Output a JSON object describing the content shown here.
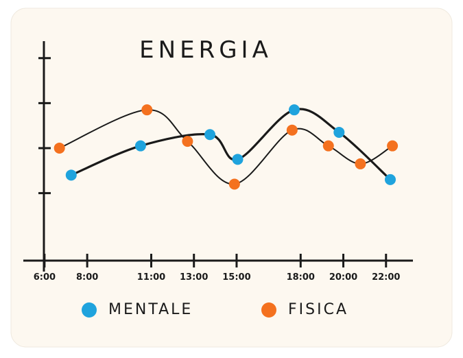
{
  "chart_data": {
    "type": "line",
    "title": "ENERGIA",
    "xlim": [
      5.2,
      24
    ],
    "ylim": [
      0,
      4.8
    ],
    "xticks": [
      {
        "value": 6,
        "label": "6:00"
      },
      {
        "value": 8,
        "label": "8:00"
      },
      {
        "value": 11,
        "label": "11:00"
      },
      {
        "value": 13,
        "label": "13:00"
      },
      {
        "value": 15,
        "label": "15:00"
      },
      {
        "value": 18,
        "label": "18:00"
      },
      {
        "value": 20,
        "label": "20:00"
      },
      {
        "value": 22,
        "label": "22:00"
      }
    ],
    "yticks": [
      1.5,
      2.5,
      3.5,
      4.5
    ],
    "series": [
      {
        "name": "MENTALE",
        "color": "#1fa3dd",
        "x": [
          7.25,
          10.5,
          13.75,
          15.05,
          17.7,
          19.8,
          22.2
        ],
        "values": [
          1.9,
          2.55,
          2.8,
          2.25,
          3.35,
          2.85,
          1.8
        ]
      },
      {
        "name": "FISICA",
        "color": "#f4711f",
        "x": [
          6.7,
          10.8,
          12.7,
          14.9,
          17.6,
          19.3,
          20.8,
          22.3
        ],
        "values": [
          2.5,
          3.35,
          2.65,
          1.7,
          2.9,
          2.55,
          2.15,
          2.55
        ]
      }
    ]
  }
}
